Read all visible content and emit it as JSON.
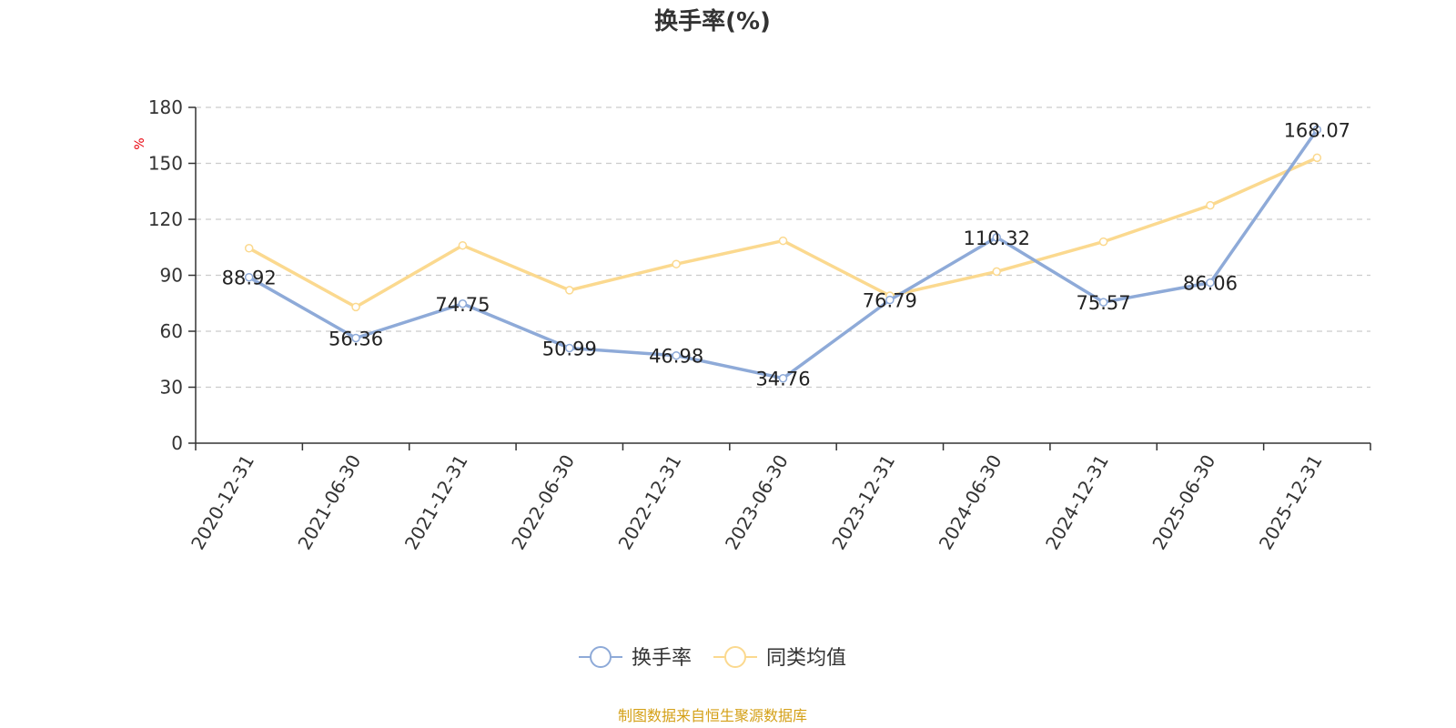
{
  "chart_data": {
    "type": "line",
    "title": "换手率(%)",
    "ylabel": "%",
    "ylim": [
      0,
      180
    ],
    "yticks": [
      0,
      30,
      60,
      90,
      120,
      150,
      180
    ],
    "grid": true,
    "categories": [
      "2020-12-31",
      "2021-06-30",
      "2021-12-31",
      "2022-06-30",
      "2022-12-31",
      "2023-06-30",
      "2023-12-31",
      "2024-06-30",
      "2024-12-31",
      "2025-06-30",
      "2025-12-31"
    ],
    "series": [
      {
        "name": "换手率",
        "color": "#8eaad8",
        "values": [
          88.92,
          56.36,
          74.75,
          50.99,
          46.98,
          34.76,
          76.79,
          110.32,
          75.57,
          86.06,
          168.07
        ],
        "labels": [
          "88.92",
          "56.36",
          "74.75",
          "50.99",
          "46.98",
          "34.76",
          "76.79",
          "110.32",
          "75.57",
          "86.06",
          "168.07"
        ]
      },
      {
        "name": "同类均值",
        "color": "#fbd98f",
        "values": [
          104.5,
          73,
          106,
          82,
          96,
          108.5,
          79,
          92,
          108,
          127.5,
          153
        ]
      }
    ],
    "legend_position": "bottom-center"
  },
  "colors": {
    "axis": "#333333",
    "grid": "#cccccc",
    "unit": "#e8000b",
    "footer": "#d4a017"
  },
  "footer": "制图数据来自恒生聚源数据库"
}
